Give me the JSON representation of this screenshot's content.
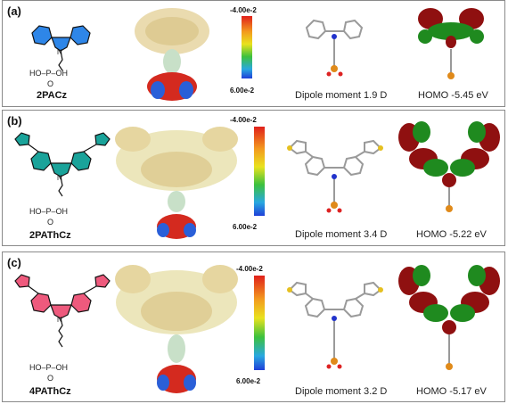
{
  "panels": [
    {
      "label": "(a)",
      "compound": "2PACz",
      "phosphonic": "HO–P–OH",
      "oxo": "O",
      "nitrogen": "N",
      "scale_top": "-4.00e-2",
      "scale_bottom": "6.00e-2",
      "dipole": "Dipole moment 1.9 D",
      "homo": "HOMO -5.45 eV"
    },
    {
      "label": "(b)",
      "compound": "2PAThCz",
      "phosphonic": "HO–P–OH",
      "oxo": "O",
      "nitrogen": "N",
      "scale_top": "-4.00e-2",
      "scale_bottom": "6.00e-2",
      "dipole": "Dipole moment 3.4 D",
      "homo": "HOMO -5.22 eV"
    },
    {
      "label": "(c)",
      "compound": "4PAThCz",
      "phosphonic": "HO–P–OH",
      "oxo": "O",
      "nitrogen": "N",
      "scale_top": "-4.00e-2",
      "scale_bottom": "6.00e-2",
      "dipole": "Dipole moment 3.2 D",
      "homo": "HOMO -5.17 eV"
    }
  ],
  "colors": {
    "carbazole_blue": "#2e86e8",
    "carbazole_teal": "#1aa39a",
    "carbazole_pink": "#ee5a7d",
    "thiophene_s": "#e5c020",
    "orbital_red": "#8f1010",
    "orbital_green": "#1f8a1f"
  }
}
